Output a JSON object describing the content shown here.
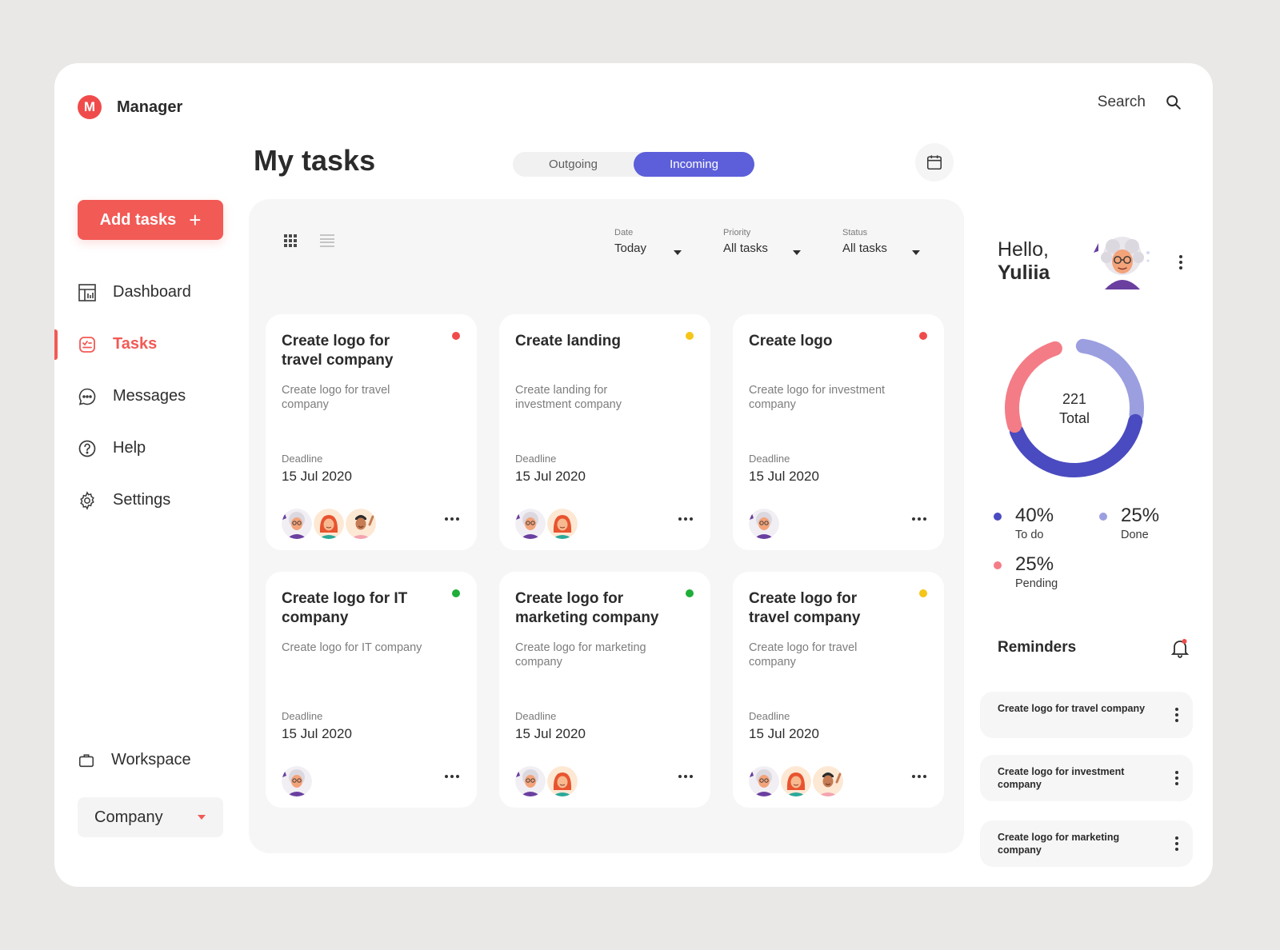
{
  "brand": {
    "logo_letter": "M",
    "name": "Manager"
  },
  "search": {
    "label": "Search"
  },
  "sidebar": {
    "add_label": "Add tasks",
    "items": [
      {
        "label": "Dashboard",
        "icon": "dashboard-icon"
      },
      {
        "label": "Tasks",
        "icon": "tasks-icon",
        "active": true
      },
      {
        "label": "Messages",
        "icon": "messages-icon"
      },
      {
        "label": "Help",
        "icon": "help-icon"
      },
      {
        "label": "Settings",
        "icon": "settings-icon"
      }
    ],
    "workspace_label": "Workspace",
    "company_value": "Company"
  },
  "main": {
    "title": "My tasks",
    "toggle": {
      "options": [
        "Outgoing",
        "Incoming"
      ],
      "selected": "Incoming"
    },
    "filters": [
      {
        "label": "Date",
        "value": "Today"
      },
      {
        "label": "Priority",
        "value": "All tasks"
      },
      {
        "label": "Status",
        "value": "All tasks"
      }
    ],
    "deadline_label": "Deadline",
    "tasks": [
      {
        "title": "Create logo for travel company",
        "desc": "Create logo for travel company",
        "deadline": "15 Jul 2020",
        "status_color": "#f04b4b",
        "avatars": 3
      },
      {
        "title": "Create landing",
        "desc": "Create landing for investment company",
        "deadline": "15 Jul 2020",
        "status_color": "#f5c518",
        "avatars": 2
      },
      {
        "title": "Create logo",
        "desc": "Create logo for investment company",
        "deadline": "15 Jul 2020",
        "status_color": "#f04b4b",
        "avatars": 1
      },
      {
        "title": "Create logo for IT company",
        "desc": "Create logo for IT company",
        "deadline": "15 Jul 2020",
        "status_color": "#1fae3a",
        "avatars": 1
      },
      {
        "title": "Create logo for marketing company",
        "desc": "Create logo for marketing company",
        "deadline": "15 Jul 2020",
        "status_color": "#1fae3a",
        "avatars": 2
      },
      {
        "title": "Create logo for travel company",
        "desc": "Create logo for travel company",
        "deadline": "15 Jul 2020",
        "status_color": "#f5c518",
        "avatars": 3
      }
    ]
  },
  "profile": {
    "greeting": "Hello,",
    "name": "Yuliia"
  },
  "stats": {
    "total_value": "221",
    "total_label": "Total",
    "items": [
      {
        "value": "40%",
        "label": "To do",
        "color": "#4a4bc0"
      },
      {
        "value": "25%",
        "label": "Done",
        "color": "#9b9fe0"
      },
      {
        "value": "25%",
        "label": "Pending",
        "color": "#f47c86"
      }
    ]
  },
  "reminders": {
    "title": "Reminders",
    "items": [
      "Create logo for travel company",
      "Create logo for investment company",
      "Create logo for marketing company"
    ]
  }
}
